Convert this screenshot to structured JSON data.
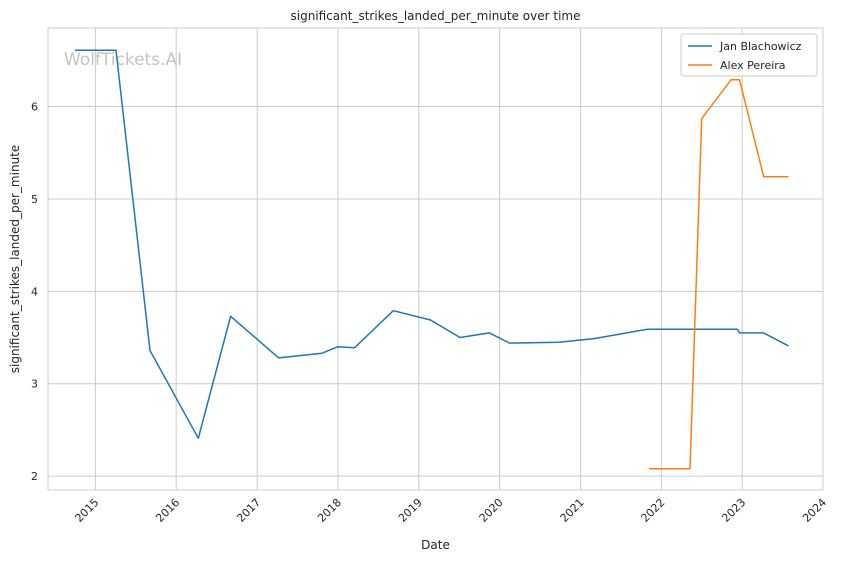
{
  "chart_data": {
    "type": "line",
    "title": "significant_strikes_landed_per_minute over time",
    "xlabel": "Date",
    "ylabel": "significant_strikes_landed_per_minute",
    "watermark": "WolfTickets.AI",
    "x_ticks": [
      "2015",
      "2016",
      "2017",
      "2018",
      "2019",
      "2020",
      "2021",
      "2022",
      "2023",
      "2024"
    ],
    "y_ticks": [
      2,
      3,
      4,
      5,
      6
    ],
    "xlim": [
      "2014-06-01",
      "2024-01-01"
    ],
    "ylim": [
      1.85,
      6.85
    ],
    "grid": true,
    "legend_position": "top-right",
    "colors": {
      "Jan Blachowicz": "#1f77b4",
      "Alex Pereira": "#ff7f0e"
    },
    "series": [
      {
        "name": "Jan Blachowicz",
        "points": [
          [
            "2014-10-01",
            6.61
          ],
          [
            "2015-04-04",
            6.61
          ],
          [
            "2015-09-05",
            3.36
          ],
          [
            "2016-04-10",
            2.41
          ],
          [
            "2016-09-03",
            3.73
          ],
          [
            "2017-04-08",
            3.28
          ],
          [
            "2017-10-21",
            3.33
          ],
          [
            "2017-12-30",
            3.4
          ],
          [
            "2018-03-17",
            3.39
          ],
          [
            "2018-09-08",
            3.79
          ],
          [
            "2019-02-23",
            3.69
          ],
          [
            "2019-07-06",
            3.5
          ],
          [
            "2019-11-16",
            3.55
          ],
          [
            "2020-02-15",
            3.44
          ],
          [
            "2020-09-26",
            3.45
          ],
          [
            "2021-03-06",
            3.49
          ],
          [
            "2021-10-30",
            3.59
          ],
          [
            "2022-03-26",
            3.59
          ],
          [
            "2022-05-14",
            3.59
          ],
          [
            "2022-12-10",
            3.59
          ],
          [
            "2022-12-20",
            3.55
          ],
          [
            "2023-04-08",
            3.55
          ],
          [
            "2023-07-29",
            3.41
          ]
        ]
      },
      {
        "name": "Alex Pereira",
        "points": [
          [
            "2021-11-06",
            2.08
          ],
          [
            "2022-05-10",
            2.08
          ],
          [
            "2022-07-02",
            5.87
          ],
          [
            "2022-11-12",
            6.29
          ],
          [
            "2022-12-20",
            6.29
          ],
          [
            "2023-04-08",
            5.24
          ],
          [
            "2023-07-29",
            5.24
          ]
        ]
      }
    ]
  }
}
